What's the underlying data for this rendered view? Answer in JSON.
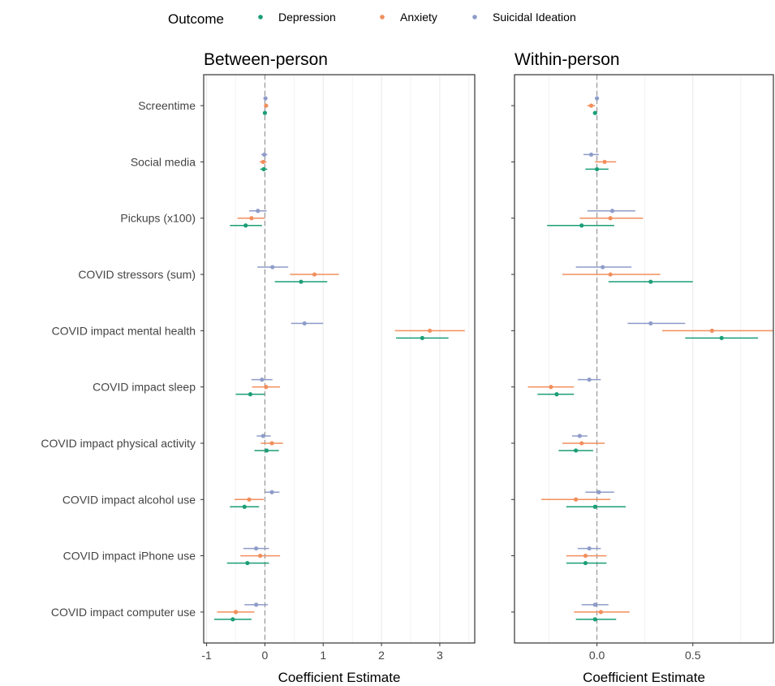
{
  "chart_data": {
    "type": "forest",
    "legend": {
      "title": "Outcome",
      "position": "top",
      "items": [
        {
          "name": "Depression",
          "color": "#1b9e77"
        },
        {
          "name": "Anxiety",
          "color": "#f28e5c"
        },
        {
          "name": "Suicidal Ideation",
          "color": "#8e9cc9"
        }
      ]
    },
    "predictors": [
      "Screentime",
      "Social media",
      "Pickups (x100)",
      "COVID stressors (sum)",
      "COVID impact mental health",
      "COVID impact sleep",
      "COVID impact physical activity",
      "COVID impact alcohol use",
      "COVID impact iPhone use",
      "COVID impact computer use"
    ],
    "panels": [
      {
        "title": "Between-person",
        "xlabel": "Coefficient Estimate",
        "xlim": [
          -1.05,
          3.6
        ],
        "xticks": [
          -1,
          0,
          1,
          2,
          3
        ],
        "xtick_labels": [
          "-1",
          "0",
          "1",
          "2",
          "3"
        ],
        "reference_line": 0,
        "series": [
          {
            "name": "Depression",
            "estimates": [
              0.0,
              -0.02,
              -0.33,
              0.62,
              2.7,
              -0.25,
              0.03,
              -0.35,
              -0.3,
              -0.55
            ],
            "lower": [
              -0.02,
              -0.08,
              -0.6,
              0.17,
              2.25,
              -0.5,
              -0.18,
              -0.6,
              -0.65,
              -0.87
            ],
            "upper": [
              0.02,
              0.04,
              -0.05,
              1.07,
              3.15,
              0.0,
              0.24,
              -0.1,
              0.07,
              -0.23
            ]
          },
          {
            "name": "Anxiety",
            "estimates": [
              0.02,
              -0.03,
              -0.23,
              0.85,
              2.83,
              0.02,
              0.12,
              -0.27,
              -0.08,
              -0.5
            ],
            "lower": [
              -0.01,
              -0.09,
              -0.47,
              0.43,
              2.23,
              -0.22,
              -0.07,
              -0.52,
              -0.42,
              -0.82
            ],
            "upper": [
              0.05,
              0.03,
              0.0,
              1.27,
              3.43,
              0.26,
              0.31,
              -0.02,
              0.26,
              -0.18
            ]
          },
          {
            "name": "Suicidal Ideation",
            "estimates": [
              0.01,
              -0.01,
              -0.12,
              0.13,
              0.68,
              -0.05,
              -0.03,
              0.12,
              -0.15,
              -0.15
            ],
            "lower": [
              -0.01,
              -0.06,
              -0.27,
              -0.13,
              0.45,
              -0.23,
              -0.14,
              0.01,
              -0.37,
              -0.35
            ],
            "upper": [
              0.03,
              0.04,
              0.03,
              0.4,
              1.0,
              0.13,
              0.1,
              0.25,
              0.07,
              0.05
            ]
          }
        ]
      },
      {
        "title": "Within-person",
        "xlabel": "Coefficient Estimate",
        "xlim": [
          -0.43,
          0.92
        ],
        "xticks": [
          0.0,
          0.5
        ],
        "xtick_labels": [
          "0.0",
          "0.5"
        ],
        "reference_line": 0,
        "series": [
          {
            "name": "Depression",
            "estimates": [
              -0.01,
              0.0,
              -0.08,
              0.28,
              0.65,
              -0.21,
              -0.11,
              -0.01,
              -0.06,
              -0.01
            ],
            "lower": [
              -0.02,
              -0.06,
              -0.26,
              0.06,
              0.46,
              -0.31,
              -0.2,
              -0.16,
              -0.16,
              -0.11
            ],
            "upper": [
              0.0,
              0.06,
              0.09,
              0.5,
              0.84,
              -0.12,
              -0.02,
              0.15,
              0.05,
              0.1
            ]
          },
          {
            "name": "Anxiety",
            "estimates": [
              -0.03,
              0.04,
              0.07,
              0.07,
              0.6,
              -0.24,
              -0.08,
              -0.11,
              -0.06,
              0.02
            ],
            "lower": [
              -0.05,
              -0.01,
              -0.09,
              -0.18,
              0.34,
              -0.36,
              -0.18,
              -0.29,
              -0.16,
              -0.12
            ],
            "upper": [
              -0.01,
              0.1,
              0.24,
              0.33,
              0.92,
              -0.12,
              0.04,
              0.07,
              0.05,
              0.17
            ]
          },
          {
            "name": "Suicidal Ideation",
            "estimates": [
              0.0,
              -0.03,
              0.08,
              0.03,
              0.28,
              -0.04,
              -0.09,
              0.01,
              -0.04,
              -0.01
            ],
            "lower": [
              -0.01,
              -0.07,
              -0.05,
              -0.11,
              0.16,
              -0.1,
              -0.13,
              -0.06,
              -0.1,
              -0.08
            ],
            "upper": [
              0.01,
              0.01,
              0.2,
              0.18,
              0.46,
              0.02,
              -0.05,
              0.09,
              0.02,
              0.06
            ]
          }
        ]
      }
    ]
  }
}
